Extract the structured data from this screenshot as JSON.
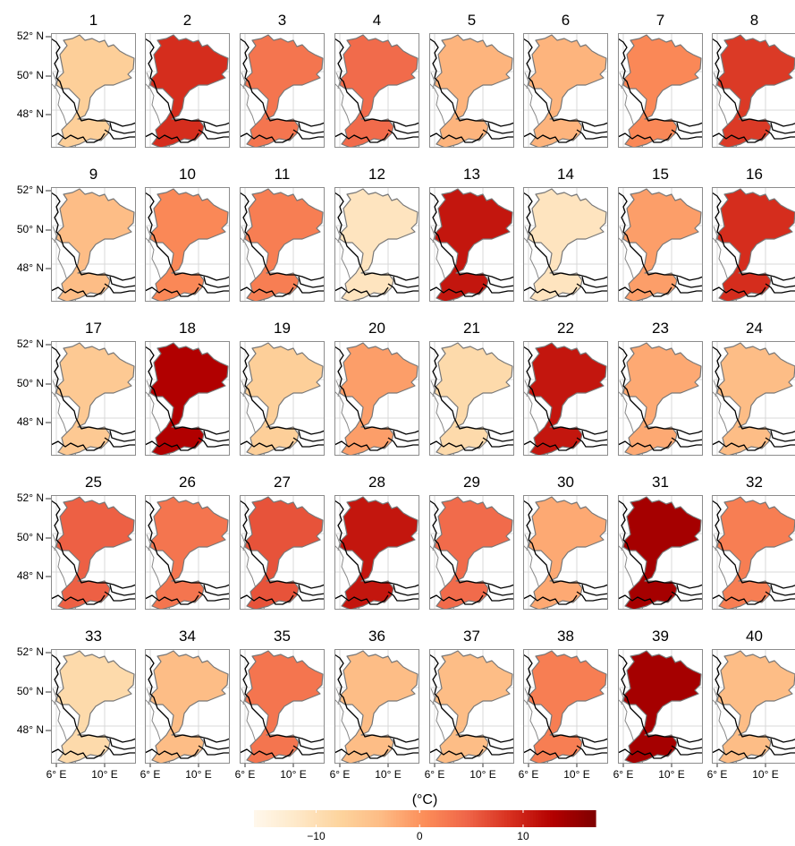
{
  "chart_data": {
    "type": "heatmap",
    "panel_values": [
      {
        "title": "1",
        "value": -7
      },
      {
        "title": "2",
        "value": 9
      },
      {
        "title": "3",
        "value": 3
      },
      {
        "title": "4",
        "value": 4
      },
      {
        "title": "5",
        "value": -3
      },
      {
        "title": "6",
        "value": -3
      },
      {
        "title": "7",
        "value": 1
      },
      {
        "title": "8",
        "value": 8
      },
      {
        "title": "9",
        "value": -4
      },
      {
        "title": "10",
        "value": 1
      },
      {
        "title": "11",
        "value": 2
      },
      {
        "title": "12",
        "value": -11
      },
      {
        "title": "13",
        "value": 11
      },
      {
        "title": "14",
        "value": -11
      },
      {
        "title": "15",
        "value": -1
      },
      {
        "title": "16",
        "value": 9
      },
      {
        "title": "17",
        "value": -6
      },
      {
        "title": "18",
        "value": 13
      },
      {
        "title": "19",
        "value": -7
      },
      {
        "title": "20",
        "value": -1
      },
      {
        "title": "21",
        "value": -9
      },
      {
        "title": "22",
        "value": 11
      },
      {
        "title": "23",
        "value": -2
      },
      {
        "title": "24",
        "value": -4
      },
      {
        "title": "25",
        "value": 5
      },
      {
        "title": "26",
        "value": 3
      },
      {
        "title": "27",
        "value": 6
      },
      {
        "title": "28",
        "value": 11
      },
      {
        "title": "29",
        "value": 4
      },
      {
        "title": "30",
        "value": -2
      },
      {
        "title": "31",
        "value": 14
      },
      {
        "title": "32",
        "value": 2
      },
      {
        "title": "33",
        "value": -9
      },
      {
        "title": "34",
        "value": -4
      },
      {
        "title": "35",
        "value": 3
      },
      {
        "title": "36",
        "value": -4
      },
      {
        "title": "37",
        "value": -4
      },
      {
        "title": "38",
        "value": 2
      },
      {
        "title": "39",
        "value": 14
      },
      {
        "title": "40",
        "value": -4
      }
    ],
    "x_ticks": [
      "6° E",
      "10° E"
    ],
    "y_ticks": [
      "52° N",
      "50° N",
      "48° N"
    ],
    "colorbar": {
      "title": "(°C)",
      "range": [
        -16,
        17
      ],
      "ticks": [
        {
          "value": -10,
          "label": "−10"
        },
        {
          "value": 0,
          "label": "0"
        },
        {
          "value": 10,
          "label": "10"
        }
      ],
      "colors": [
        "#fff7ec",
        "#fee8c8",
        "#fdd49e",
        "#fdbb84",
        "#fc8d59",
        "#ef6548",
        "#d7301f",
        "#b30000",
        "#7f0000"
      ]
    },
    "grid": true,
    "layout": {
      "rows": 5,
      "cols": 8
    }
  }
}
